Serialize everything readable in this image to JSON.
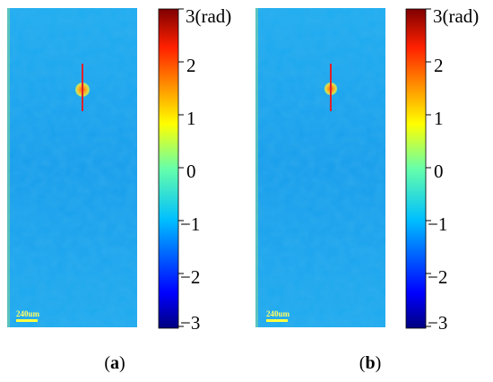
{
  "colors": {
    "background_field": "#1aa8ee",
    "marker_line": "#e0202a",
    "marker_spot": "#f0a020",
    "scale_bar": "#ffff40"
  },
  "colorbar": {
    "tick_labels": [
      "3(rad)",
      "2",
      "1",
      "0",
      "−1",
      "−2",
      "−3"
    ],
    "tick_values": [
      3,
      2,
      1,
      0,
      -1,
      -2,
      -3
    ],
    "range": [
      -3,
      3
    ],
    "colormap": "jet"
  },
  "panels": [
    {
      "id": "a",
      "label_open": "(",
      "label_letter": "a",
      "label_close": ")",
      "scale_bar_text": "240um"
    },
    {
      "id": "b",
      "label_open": "(",
      "label_letter": "b",
      "label_close": ")",
      "scale_bar_text": "240um"
    }
  ]
}
